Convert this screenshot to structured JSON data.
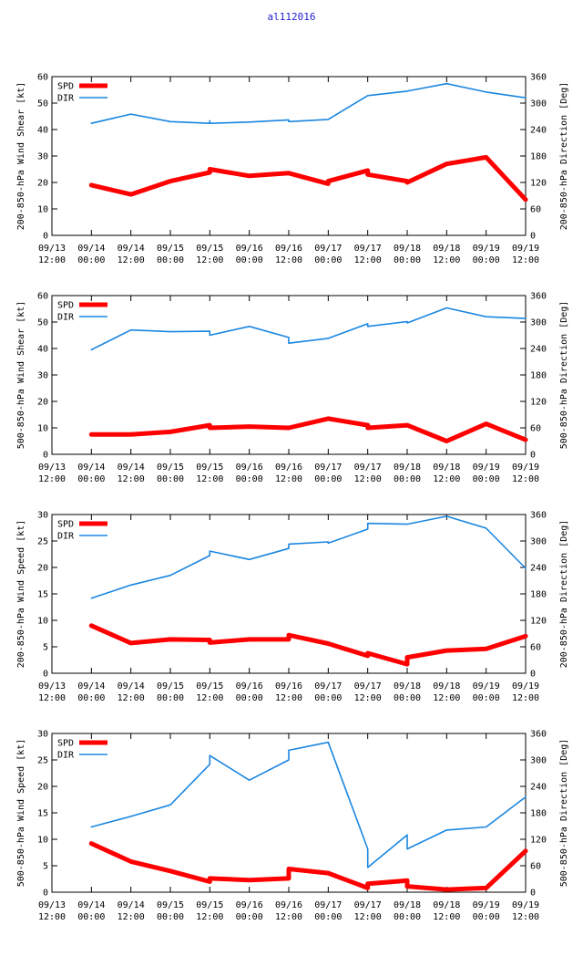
{
  "title": "al112016",
  "colors": {
    "spd": "#ff0000",
    "dir": "#1a86e0",
    "title": "#2020d0"
  },
  "x_ticks": [
    {
      "t": -12,
      "line1": "09/13",
      "line2": "12:00"
    },
    {
      "t": 0,
      "line1": "09/14",
      "line2": "00:00"
    },
    {
      "t": 12,
      "line1": "09/14",
      "line2": "12:00"
    },
    {
      "t": 24,
      "line1": "09/15",
      "line2": "00:00"
    },
    {
      "t": 36,
      "line1": "09/15",
      "line2": "12:00"
    },
    {
      "t": 48,
      "line1": "09/16",
      "line2": "00:00"
    },
    {
      "t": 60,
      "line1": "09/16",
      "line2": "12:00"
    },
    {
      "t": 72,
      "line1": "09/17",
      "line2": "00:00"
    },
    {
      "t": 84,
      "line1": "09/17",
      "line2": "12:00"
    },
    {
      "t": 96,
      "line1": "09/18",
      "line2": "00:00"
    },
    {
      "t": 108,
      "line1": "09/18",
      "line2": "12:00"
    },
    {
      "t": 120,
      "line1": "09/19",
      "line2": "00:00"
    },
    {
      "t": 132,
      "line1": "09/19",
      "line2": "12:00"
    }
  ],
  "chart_data": [
    {
      "type": "line",
      "ylabel": "200-850-hPa Wind Shear [kt]",
      "y2label": "200-850-hPa Direction [Deg]",
      "xlim": [
        -12,
        132
      ],
      "ylim": [
        0,
        60
      ],
      "yticks": [
        0,
        10,
        20,
        30,
        40,
        50,
        60
      ],
      "y2lim": [
        0,
        360
      ],
      "y2ticks": [
        0,
        60,
        120,
        180,
        240,
        300,
        360
      ],
      "series": [
        {
          "name": "SPD",
          "axis": "left",
          "x": [
            0,
            12,
            24,
            36,
            36,
            48,
            60,
            72,
            72,
            84,
            84,
            96,
            96,
            108,
            120,
            132
          ],
          "y": [
            19,
            15.5,
            20.5,
            23.8,
            25,
            22.5,
            23.5,
            19.5,
            20.5,
            24.5,
            23,
            20.5,
            20,
            27,
            29.5,
            13.5
          ]
        },
        {
          "name": "DIR",
          "axis": "right",
          "x": [
            0,
            12,
            24,
            36,
            36,
            36,
            48,
            60,
            60,
            72,
            84,
            96,
            108,
            120,
            132
          ],
          "y": [
            254,
            275,
            258,
            254,
            260,
            254,
            257,
            262,
            258,
            263,
            317,
            327,
            344,
            325,
            312
          ]
        }
      ]
    },
    {
      "type": "line",
      "ylabel": "500-850-hPa Wind Shear [kt]",
      "y2label": "500-850-hPa Direction [Deg]",
      "xlim": [
        -12,
        132
      ],
      "ylim": [
        0,
        60
      ],
      "yticks": [
        0,
        10,
        20,
        30,
        40,
        50,
        60
      ],
      "y2lim": [
        0,
        360
      ],
      "y2ticks": [
        0,
        60,
        120,
        180,
        240,
        300,
        360
      ],
      "series": [
        {
          "name": "SPD",
          "axis": "left",
          "x": [
            0,
            12,
            24,
            36,
            36,
            48,
            60,
            72,
            84,
            84,
            96,
            108,
            120,
            132
          ],
          "y": [
            7.5,
            7.5,
            8.5,
            11,
            10,
            10.5,
            10,
            13.5,
            11,
            10,
            11,
            5,
            11.5,
            5.5
          ]
        },
        {
          "name": "DIR",
          "axis": "right",
          "x": [
            0,
            12,
            24,
            36,
            36,
            48,
            60,
            60,
            72,
            84,
            84,
            96,
            96,
            108,
            120,
            132
          ],
          "y": [
            237,
            282,
            278,
            279,
            270,
            290,
            265,
            252,
            263,
            296,
            290,
            301,
            298,
            332,
            312,
            308
          ]
        }
      ]
    },
    {
      "type": "line",
      "ylabel": "200-850-hPa Wind Speed [kt]",
      "y2label": "200-850-hPa Direction [Deg]",
      "xlim": [
        -12,
        132
      ],
      "ylim": [
        0,
        30
      ],
      "yticks": [
        0,
        5,
        10,
        15,
        20,
        25,
        30
      ],
      "y2lim": [
        0,
        360
      ],
      "y2ticks": [
        0,
        60,
        120,
        180,
        240,
        300,
        360
      ],
      "series": [
        {
          "name": "SPD",
          "axis": "left",
          "x": [
            0,
            12,
            24,
            36,
            36,
            48,
            60,
            60,
            72,
            84,
            84,
            96,
            96,
            108,
            120,
            132
          ],
          "y": [
            9,
            5.7,
            6.4,
            6.3,
            5.8,
            6.4,
            6.4,
            7.2,
            5.6,
            3.3,
            3.8,
            1.7,
            3,
            4.3,
            4.6,
            7
          ]
        },
        {
          "name": "DIR",
          "axis": "right",
          "x": [
            0,
            12,
            24,
            36,
            36,
            48,
            60,
            60,
            72,
            72,
            84,
            84,
            96,
            108,
            120,
            132
          ],
          "y": [
            170,
            200,
            222,
            267,
            277,
            258,
            283,
            293,
            298,
            295,
            327,
            340,
            338,
            356,
            329,
            238
          ]
        }
      ]
    },
    {
      "type": "line",
      "ylabel": "500-850-hPa Wind Speed [kt]",
      "y2label": "500-850-hPa Direction [Deg]",
      "xlim": [
        -12,
        132
      ],
      "ylim": [
        0,
        30
      ],
      "yticks": [
        0,
        5,
        10,
        15,
        20,
        25,
        30
      ],
      "y2lim": [
        0,
        360
      ],
      "y2ticks": [
        0,
        60,
        120,
        180,
        240,
        300,
        360
      ],
      "series": [
        {
          "name": "SPD",
          "axis": "left",
          "x": [
            0,
            12,
            24,
            36,
            36,
            48,
            60,
            60,
            72,
            84,
            84,
            96,
            96,
            108,
            120,
            132
          ],
          "y": [
            9.2,
            5.8,
            4,
            2,
            2.6,
            2.3,
            2.6,
            4.4,
            3.6,
            0.8,
            1.6,
            2.2,
            1.1,
            0.5,
            0.8,
            7.8
          ]
        },
        {
          "name": "DIR",
          "axis": "right",
          "x": [
            0,
            12,
            24,
            36,
            36,
            48,
            60,
            60,
            72,
            84,
            84,
            96,
            96,
            108,
            120,
            132
          ],
          "y": [
            148,
            172,
            198,
            290,
            310,
            254,
            300,
            322,
            340,
            98,
            56,
            130,
            98,
            141,
            148,
            216
          ]
        }
      ]
    }
  ]
}
